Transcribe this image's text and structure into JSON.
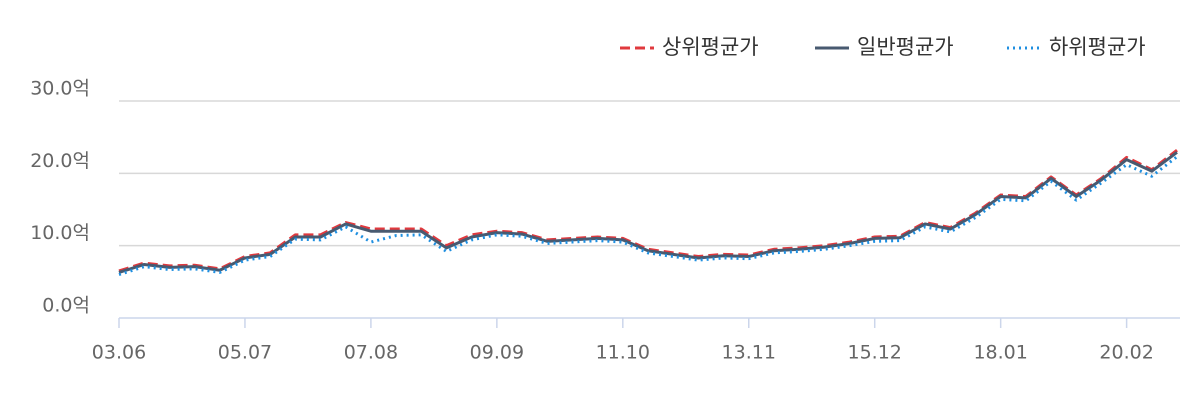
{
  "chart_data": {
    "type": "line",
    "categories": [
      "03.06",
      null,
      null,
      null,
      null,
      "05.07",
      null,
      null,
      null,
      null,
      "07.08",
      null,
      null,
      null,
      null,
      "09.09",
      null,
      null,
      null,
      null,
      "11.10",
      null,
      null,
      null,
      null,
      "13.11",
      null,
      null,
      null,
      null,
      "15.12",
      null,
      null,
      null,
      null,
      "18.01",
      null,
      null,
      null,
      null,
      "20.02",
      null,
      null
    ],
    "series": [
      {
        "name": "상위평균가",
        "color": "#e0393e",
        "dash": "dashed",
        "values": [
          6.5,
          7.6,
          7.2,
          7.3,
          6.8,
          8.5,
          9.0,
          11.5,
          11.5,
          13.2,
          12.3,
          12.3,
          12.3,
          10.0,
          11.5,
          12.0,
          11.8,
          10.8,
          11.0,
          11.2,
          11.0,
          9.5,
          9.0,
          8.5,
          8.8,
          8.7,
          9.5,
          9.7,
          10.0,
          10.5,
          11.2,
          11.3,
          13.2,
          12.5,
          14.5,
          17.0,
          16.8,
          19.5,
          17.0,
          19.3,
          22.2,
          20.5,
          23.2
        ]
      },
      {
        "name": "일반평균가",
        "color": "#485a70",
        "dash": "solid",
        "values": [
          6.3,
          7.4,
          7.0,
          7.1,
          6.6,
          8.3,
          8.8,
          11.2,
          11.2,
          13.0,
          12.0,
          12.0,
          12.0,
          9.7,
          11.2,
          11.8,
          11.6,
          10.6,
          10.8,
          11.0,
          10.8,
          9.3,
          8.8,
          8.3,
          8.6,
          8.5,
          9.3,
          9.5,
          9.8,
          10.3,
          11.0,
          11.1,
          13.0,
          12.3,
          14.3,
          16.8,
          16.6,
          19.3,
          16.8,
          19.1,
          21.9,
          20.3,
          22.9
        ]
      },
      {
        "name": "하위평균가",
        "color": "#1f8fe0",
        "dash": "dotted",
        "values": [
          6.0,
          7.1,
          6.7,
          6.8,
          6.3,
          8.0,
          8.5,
          10.9,
          10.8,
          12.6,
          10.5,
          11.4,
          11.5,
          9.2,
          10.8,
          11.5,
          11.3,
          10.3,
          10.5,
          10.7,
          10.5,
          9.0,
          8.5,
          8.0,
          8.3,
          8.2,
          9.0,
          9.2,
          9.5,
          10.0,
          10.6,
          10.7,
          12.6,
          11.9,
          13.9,
          16.4,
          16.2,
          18.9,
          16.3,
          18.7,
          21.2,
          19.6,
          22.3
        ]
      }
    ],
    "ylim": [
      0,
      30
    ],
    "yticks": [
      {
        "value": 0,
        "label": "0.0억"
      },
      {
        "value": 10,
        "label": "10.0억"
      },
      {
        "value": 20,
        "label": "20.0억"
      },
      {
        "value": 30,
        "label": "30.0억"
      }
    ],
    "grid": true,
    "legend": "top-right"
  }
}
